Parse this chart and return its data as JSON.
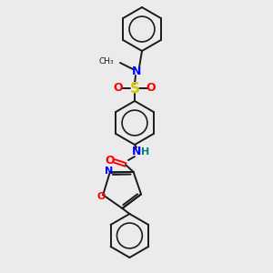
{
  "bg_color": "#ebebeb",
  "bond_color": "#1a1a1a",
  "N_color": "#0000ff",
  "O_color": "#ff0000",
  "S_color": "#cccc00",
  "NH_color": "#008080",
  "figsize": [
    3.0,
    3.0
  ],
  "dpi": 100,
  "xlim": [
    0,
    300
  ],
  "ylim": [
    0,
    300
  ]
}
